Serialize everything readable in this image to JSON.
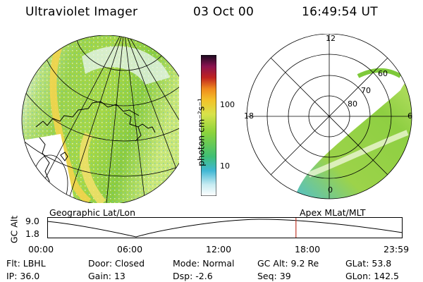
{
  "header": {
    "title": "Ultraviolet Imager",
    "date": "03 Oct 00",
    "time": "16:49:54 UT"
  },
  "colorbar": {
    "unit": "photon cm⁻²s⁻¹",
    "ticks": [
      "100",
      "10"
    ]
  },
  "geo_panel": {
    "caption": "Geographic Lat/Lon"
  },
  "polar_panel": {
    "caption": "Apex MLat/MLT",
    "mlt_labels": [
      "12",
      "18",
      "6",
      "0"
    ],
    "mlat_labels": [
      "60",
      "70",
      "80"
    ]
  },
  "altitude_plot": {
    "ylabel": "GC Alt",
    "yticks": [
      "9.0",
      "1.8"
    ],
    "xticks": [
      "00:00",
      "06:00",
      "12:00",
      "18:00",
      "23:59"
    ],
    "current_time_fraction": 0.7,
    "marker_color": "#c0392b"
  },
  "status": {
    "row1": [
      {
        "label": "Flt:",
        "value": "LBHL"
      },
      {
        "label": "Door:",
        "value": "Closed"
      },
      {
        "label": "Mode:",
        "value": "Normal"
      },
      {
        "label": "GC Alt:",
        "value": "9.2 Re"
      },
      {
        "label": "GLat:",
        "value": "53.8"
      }
    ],
    "row2": [
      {
        "label": "IP:",
        "value": "36.0"
      },
      {
        "label": "Gain:",
        "value": "13"
      },
      {
        "label": "Dsp:",
        "value": "-2.6"
      },
      {
        "label": "Seq:",
        "value": "39"
      },
      {
        "label": "GLon:",
        "value": "142.5"
      }
    ]
  }
}
